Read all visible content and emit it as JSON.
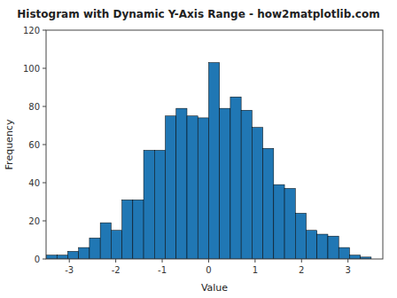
{
  "chart_data": {
    "type": "histogram",
    "title": "Histogram with Dynamic Y-Axis Range - how2matplotlib.com",
    "xlabel": "Value",
    "ylabel": "Frequency",
    "bins": [
      -3.5,
      -3.2666666666666666,
      -3.033333333333333,
      -2.8,
      -2.5666666666666664,
      -2.3333333333333335,
      -2.1,
      -1.8666666666666667,
      -1.6333333333333333,
      -1.4,
      -1.1666666666666667,
      -0.9333333333333333,
      -0.7,
      -0.4666666666666667,
      -0.2333333333333334,
      0,
      0.2333333333333334,
      0.4666666666666667,
      0.7,
      0.9333333333333333,
      1.1666666666666667,
      1.4,
      1.6333333333333333,
      1.8666666666666667,
      2.1,
      2.3333333333333335,
      2.5666666666666664,
      2.8,
      3.033333333333333,
      3.2666666666666666,
      3.5
    ],
    "values": [
      2,
      2,
      4,
      6,
      11,
      19,
      15,
      31,
      31,
      57,
      57,
      75,
      79,
      75,
      74,
      103,
      79,
      85,
      78,
      69,
      58,
      39,
      37,
      24,
      15,
      13,
      12,
      6,
      2,
      1
    ],
    "color": "#2077b4",
    "xlim": [
      -3.5,
      3.75
    ],
    "xticks": [
      -3,
      -2,
      -1,
      0,
      1,
      2,
      3
    ],
    "ylim": [
      0,
      120
    ],
    "yticks": [
      0,
      20,
      40,
      60,
      80,
      100,
      120
    ],
    "grid": false
  }
}
